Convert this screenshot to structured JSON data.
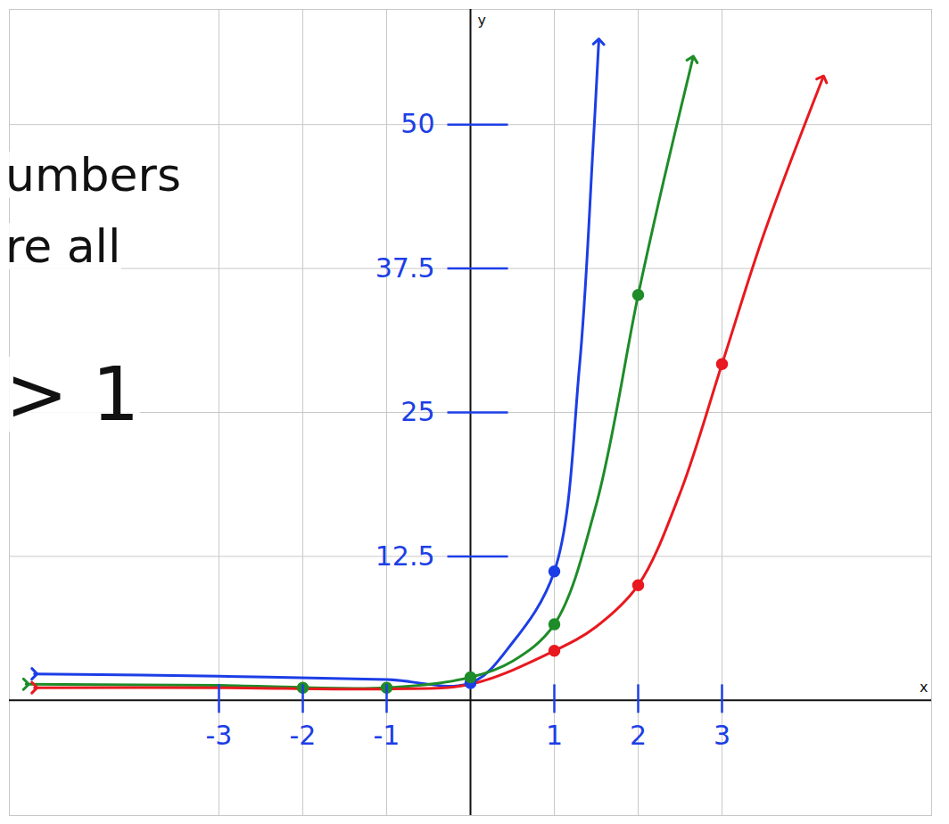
{
  "chart_data": {
    "type": "line",
    "annotations": [
      "umbers",
      "re all",
      "> 1"
    ],
    "xlabel": "x",
    "ylabel": "y",
    "xlim": [
      -5.5,
      5.5
    ],
    "ylim": [
      -10,
      60
    ],
    "xticks": [
      -3,
      -2,
      -1,
      1,
      2,
      3
    ],
    "yticks": [
      12.5,
      25,
      37.5,
      50
    ],
    "grid": true,
    "series": [
      {
        "color": "#1c3ee6",
        "line_style": "solid",
        "marker": "circle",
        "x": [
          -5.2,
          -3,
          -1,
          0,
          0.5,
          1,
          1.3,
          1.46,
          1.53
        ],
        "values": [
          2.3,
          2.1,
          1.8,
          1.5,
          5,
          11.2,
          29,
          47.8,
          57.2
        ],
        "points": {
          "x": [
            0,
            1
          ],
          "values": [
            1.5,
            11.2
          ]
        }
      },
      {
        "color": "#1e8c28",
        "line_style": "solid",
        "marker": "circle",
        "x": [
          -5.3,
          -3,
          -1,
          0,
          0.5,
          1,
          1.5,
          2,
          2.3,
          2.65
        ],
        "values": [
          1.4,
          1.3,
          1.1,
          2.0,
          3.4,
          6.6,
          17,
          35.2,
          45,
          55.7
        ],
        "points": {
          "x": [
            -2,
            -1,
            0,
            1,
            2
          ],
          "values": [
            1.1,
            1.1,
            2.0,
            6.6,
            35.2
          ]
        }
      },
      {
        "color": "#e8191f",
        "line_style": "solid",
        "marker": "circle",
        "x": [
          -5.2,
          -3,
          -1,
          0,
          1,
          1.5,
          2,
          2.5,
          3,
          3.5,
          4.2
        ],
        "values": [
          1.1,
          1.1,
          1.0,
          1.4,
          4.3,
          6.4,
          10,
          18,
          29.2,
          40.5,
          54
        ],
        "points": {
          "x": [
            1,
            2,
            3
          ],
          "values": [
            4.3,
            10,
            29.2
          ]
        }
      }
    ]
  }
}
